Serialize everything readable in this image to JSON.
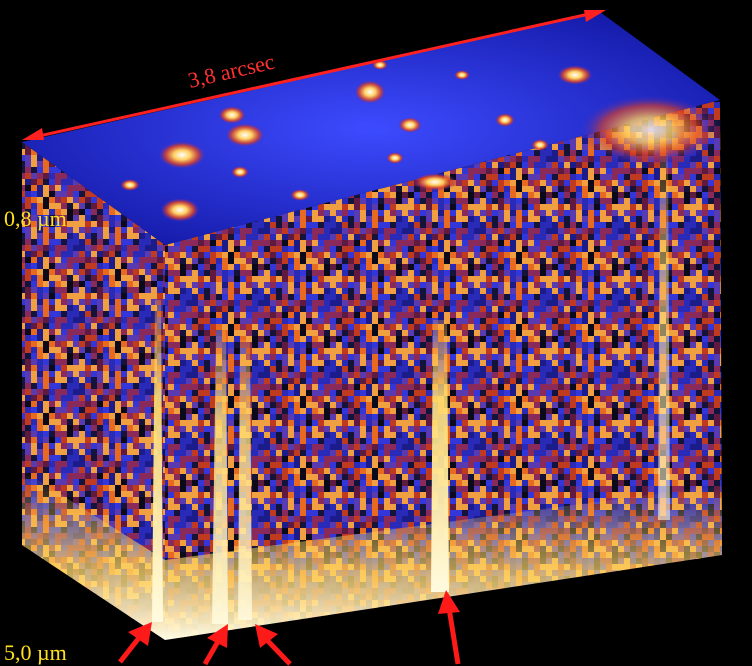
{
  "labels": {
    "top_edge": "3,8 arcsec",
    "upper_wavelength": "0,8 µm",
    "lower_wavelength": "5,0 µm"
  }
}
